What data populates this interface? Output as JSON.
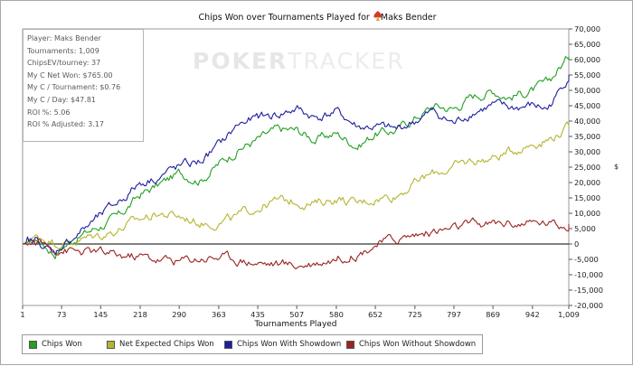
{
  "title": {
    "text": "Chips Won over Tournaments Played for",
    "player": "Maks Bender",
    "icon": "poker-spade-logo-icon"
  },
  "watermark": {
    "part1": "POKER",
    "part2": "TRACKER"
  },
  "stats": [
    "Player: Maks Bender",
    "Tournaments: 1,009",
    "ChipsEV/tourney: 37",
    "My C Net Won: $765.00",
    "My C / Tournament: $0.76",
    "My C / Day: $47.81",
    "ROI %: 5.06",
    "ROI % Adjusted: 3.17"
  ],
  "chart_data": {
    "type": "line",
    "title": "Chips Won over Tournaments Played for Maks Bender",
    "xlabel": "Tournaments Played",
    "ylabel": "",
    "xlim": [
      1,
      1009
    ],
    "ylim": [
      -20000,
      70000
    ],
    "x_ticks": [
      "1",
      "73",
      "145",
      "218",
      "290",
      "363",
      "435",
      "507",
      "580",
      "652",
      "725",
      "797",
      "869",
      "942",
      "1,009"
    ],
    "y_ticks": [
      "70,000",
      "65,000",
      "60,000",
      "55,000",
      "50,000",
      "45,000",
      "40,000",
      "35,000",
      "30,000",
      "25,000",
      "20,000",
      "15,000",
      "10,000",
      "5,000",
      "0",
      "-5,000",
      "-10,000",
      "-15,000",
      "-20,000"
    ],
    "right_axis_symbol": "$",
    "grid": false,
    "legend_position": "bottom-left",
    "series": [
      {
        "name": "Chips Won",
        "color": "#22a022",
        "x": [
          1,
          30,
          60,
          73,
          100,
          145,
          180,
          218,
          250,
          290,
          330,
          363,
          400,
          435,
          470,
          507,
          540,
          580,
          620,
          652,
          690,
          725,
          760,
          797,
          830,
          869,
          900,
          942,
          970,
          990,
          1009
        ],
        "y": [
          0,
          1500,
          -3000,
          -1000,
          2000,
          6000,
          9000,
          16000,
          19000,
          23000,
          21000,
          26000,
          31000,
          34000,
          37000,
          37000,
          34000,
          36000,
          32000,
          36000,
          37000,
          41000,
          45000,
          44000,
          48000,
          50000,
          48000,
          50000,
          52000,
          57000,
          61000
        ]
      },
      {
        "name": "Net Expected Chips Won",
        "color": "#b5b530",
        "x": [
          1,
          30,
          60,
          73,
          100,
          145,
          180,
          218,
          250,
          290,
          330,
          363,
          400,
          435,
          470,
          507,
          540,
          580,
          620,
          652,
          690,
          725,
          760,
          797,
          830,
          869,
          900,
          942,
          970,
          990,
          1009
        ],
        "y": [
          0,
          2500,
          1000,
          0,
          1000,
          3000,
          5000,
          8000,
          10000,
          9000,
          7000,
          7000,
          9000,
          12000,
          14000,
          14000,
          13000,
          15000,
          13000,
          15000,
          16000,
          20000,
          23000,
          25000,
          27000,
          28000,
          30000,
          33000,
          34000,
          36000,
          38000
        ]
      },
      {
        "name": "Chips Won With Showdown",
        "color": "#1e1ea0",
        "x": [
          1,
          30,
          60,
          73,
          100,
          145,
          180,
          218,
          250,
          290,
          330,
          363,
          400,
          435,
          470,
          507,
          540,
          580,
          620,
          652,
          690,
          725,
          760,
          797,
          830,
          869,
          900,
          942,
          970,
          990,
          1009
        ],
        "y": [
          0,
          1000,
          -3500,
          -500,
          3000,
          9000,
          14000,
          20000,
          22000,
          25000,
          27000,
          32000,
          39000,
          41000,
          42000,
          44000,
          41000,
          43000,
          38000,
          38000,
          37000,
          40000,
          43000,
          39000,
          43000,
          45000,
          44000,
          45000,
          44000,
          49000,
          55000
        ]
      },
      {
        "name": "Chips Won Without Showdown",
        "color": "#9b2323",
        "x": [
          1,
          30,
          60,
          73,
          100,
          145,
          180,
          218,
          250,
          290,
          330,
          363,
          400,
          435,
          470,
          507,
          540,
          580,
          620,
          652,
          690,
          725,
          760,
          797,
          830,
          869,
          900,
          942,
          970,
          990,
          1009
        ],
        "y": [
          0,
          500,
          -1500,
          -1500,
          -2500,
          -3000,
          -4000,
          -4000,
          -5000,
          -5500,
          -4500,
          -4000,
          -5000,
          -6000,
          -6500,
          -7000,
          -6000,
          -4500,
          -3000,
          0,
          1500,
          3000,
          4000,
          5000,
          6000,
          6500,
          7000,
          6500,
          7000,
          6000,
          6500
        ]
      }
    ]
  }
}
